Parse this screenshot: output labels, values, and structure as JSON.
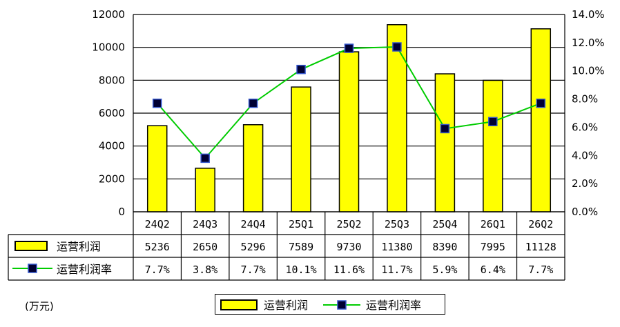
{
  "chart_data": {
    "type": "bar",
    "categories": [
      "24Q2",
      "24Q3",
      "24Q4",
      "25Q1",
      "25Q2",
      "25Q3",
      "25Q4",
      "26Q1",
      "26Q2"
    ],
    "series": [
      {
        "name": "运营利润",
        "type": "bar",
        "axis": "left",
        "values": [
          5236,
          2650,
          5296,
          7589,
          9730,
          11380,
          8390,
          7995,
          11128
        ],
        "labels": [
          "5236",
          "2650",
          "5296",
          "7589",
          "9730",
          "11380",
          "8390",
          "7995",
          "11128"
        ],
        "color": "#ffff00"
      },
      {
        "name": "运营利润率",
        "type": "line",
        "axis": "right",
        "values": [
          7.7,
          3.8,
          7.7,
          10.1,
          11.6,
          11.7,
          5.9,
          6.4,
          7.7
        ],
        "labels": [
          "7.7%",
          "3.8%",
          "7.7%",
          "10.1%",
          "11.6%",
          "11.7%",
          "5.9%",
          "6.4%",
          "7.7%"
        ],
        "color": "#00cc00",
        "marker_color": "#000033"
      }
    ],
    "y_left": {
      "ylim": [
        0,
        12000
      ],
      "ticks": [
        "0",
        "2000",
        "4000",
        "6000",
        "8000",
        "10000",
        "12000"
      ]
    },
    "y_right": {
      "ylim": [
        0,
        14
      ],
      "ticks": [
        "0.0%",
        "2.0%",
        "4.0%",
        "6.0%",
        "8.0%",
        "10.0%",
        "12.0%",
        "14.0%"
      ]
    },
    "unit": "(万元)",
    "grid": true,
    "legend_position": "bottom-center"
  }
}
